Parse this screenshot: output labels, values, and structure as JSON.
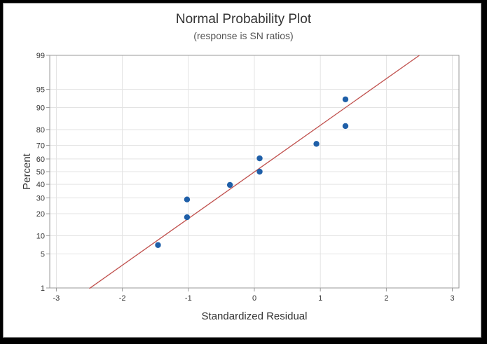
{
  "chart_data": {
    "type": "scatter",
    "title": "Normal Probability Plot",
    "subtitle": "(response is SN ratios)",
    "xlabel": "Standardized Residual",
    "ylabel": "Percent",
    "xlim": [
      -3.1,
      3.1
    ],
    "x_ticks": [
      -3,
      -2,
      -1,
      0,
      1,
      2,
      3
    ],
    "x_tick_labels": [
      "-3",
      "-2",
      "-1",
      "0",
      "1",
      "2",
      "3"
    ],
    "y_scale": "normal-probability",
    "ylim": [
      1,
      99
    ],
    "y_ticks": [
      1,
      5,
      10,
      20,
      30,
      40,
      50,
      60,
      70,
      80,
      90,
      95,
      99
    ],
    "y_tick_labels": [
      "1",
      "5",
      "10",
      "20",
      "30",
      "40",
      "50",
      "60",
      "70",
      "80",
      "90",
      "95",
      "99"
    ],
    "grid": true,
    "points": [
      {
        "x": -1.46,
        "y": 7.1
      },
      {
        "x": -1.02,
        "y": 18.1
      },
      {
        "x": -1.02,
        "y": 28.9
      },
      {
        "x": -0.37,
        "y": 39.5
      },
      {
        "x": 0.08,
        "y": 50.0
      },
      {
        "x": 0.08,
        "y": 60.5
      },
      {
        "x": 0.94,
        "y": 71.1
      },
      {
        "x": 1.38,
        "y": 81.9
      },
      {
        "x": 1.38,
        "y": 92.6
      }
    ],
    "fit_line": {
      "from": {
        "x": -2.5,
        "y": 0.97
      },
      "to": {
        "x": 2.5,
        "y": 99.0
      }
    },
    "colors": {
      "points": "#1f5fa8",
      "fit_line": "#c0504d",
      "grid": "#e3e3e3",
      "axis": "#9a9a9a"
    }
  }
}
